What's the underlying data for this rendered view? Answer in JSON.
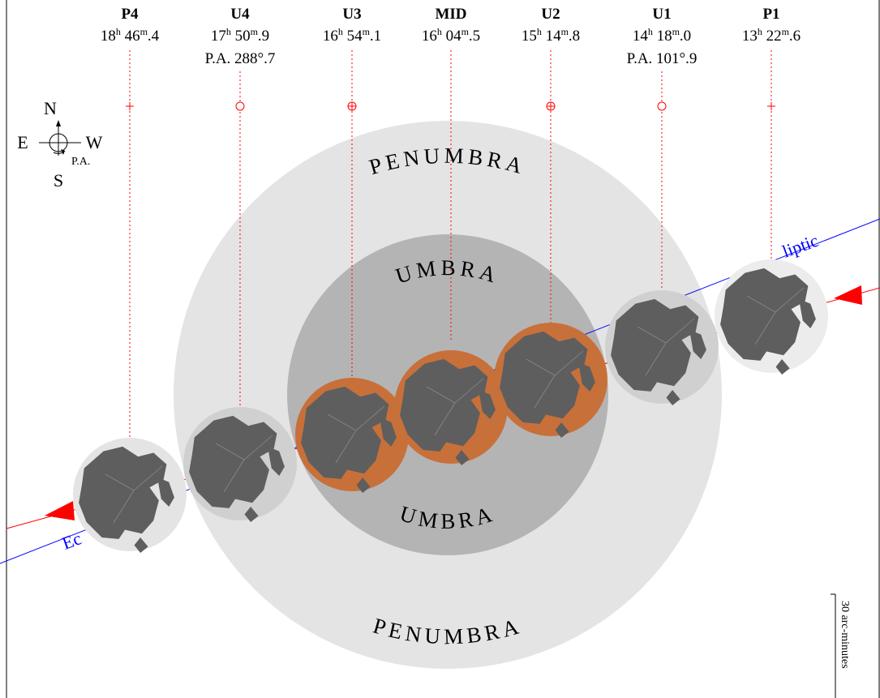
{
  "phases": [
    {
      "id": "P4",
      "label": "P4",
      "hours": "18",
      "minutes": "46",
      "frac": "4",
      "pa": "",
      "marker": "plus"
    },
    {
      "id": "U4",
      "label": "U4",
      "hours": "17",
      "minutes": "50",
      "frac": "9",
      "pa": "P.A. 288°.7",
      "marker": "circle"
    },
    {
      "id": "U3",
      "label": "U3",
      "hours": "16",
      "minutes": "54",
      "frac": "1",
      "pa": "",
      "marker": "circle-plus"
    },
    {
      "id": "MID",
      "label": "MID",
      "hours": "16",
      "minutes": "04",
      "frac": "5",
      "pa": "",
      "marker": "none"
    },
    {
      "id": "U2",
      "label": "U2",
      "hours": "15",
      "minutes": "14",
      "frac": "8",
      "pa": "",
      "marker": "circle-plus"
    },
    {
      "id": "U1",
      "label": "U1",
      "hours": "14",
      "minutes": "18",
      "frac": "0",
      "pa": "P.A. 101°.9",
      "marker": "circle"
    },
    {
      "id": "P1",
      "label": "P1",
      "hours": "13",
      "minutes": "22",
      "frac": "6",
      "pa": "",
      "marker": "plus"
    }
  ],
  "time_units": {
    "hour": "h",
    "minute": "m"
  },
  "regions": {
    "penumbra_top": "PENUMBRA",
    "penumbra_bottom": "PENUMBRA",
    "umbra_top": "UMBRA",
    "umbra_bottom": "UMBRA"
  },
  "compass": {
    "north": "N",
    "south": "S",
    "east": "E",
    "west": "W",
    "pa": "P.A."
  },
  "ecliptic_label": "Ecliptic",
  "scale_label": "30 arc-minutes",
  "colors": {
    "penumbra": "#e4e4e4",
    "umbra": "#b4b4b4",
    "eclipsed_moon": "#c8703a",
    "moon_maria": "#5e5e5e",
    "ecliptic_line": "#0000ff",
    "moon_path": "#ff0000",
    "contact_line": "#ff0000"
  }
}
